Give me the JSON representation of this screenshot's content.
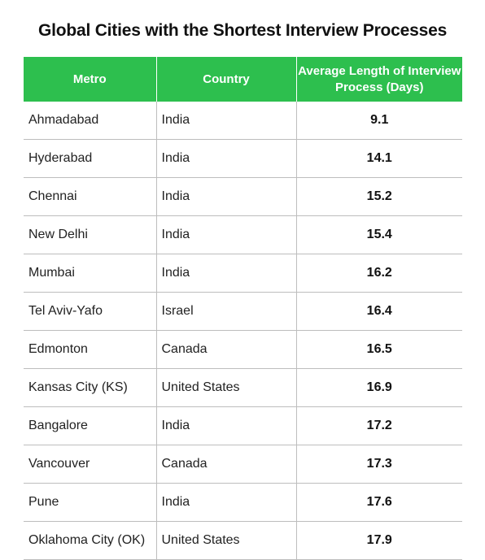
{
  "chart_data": {
    "type": "table",
    "title": "Global Cities with the Shortest Interview Processes",
    "header_color": "#2dbf4e",
    "columns": [
      "Metro",
      "Country",
      "Average Length of Interview Process (Days)"
    ],
    "rows": [
      {
        "metro": "Ahmadabad",
        "country": "India",
        "days": "9.1"
      },
      {
        "metro": "Hyderabad",
        "country": "India",
        "days": "14.1"
      },
      {
        "metro": "Chennai",
        "country": "India",
        "days": "15.2"
      },
      {
        "metro": "New Delhi",
        "country": "India",
        "days": "15.4"
      },
      {
        "metro": "Mumbai",
        "country": "India",
        "days": "16.2"
      },
      {
        "metro": "Tel Aviv-Yafo",
        "country": "Israel",
        "days": "16.4"
      },
      {
        "metro": "Edmonton",
        "country": "Canada",
        "days": "16.5"
      },
      {
        "metro": "Kansas City (KS)",
        "country": "United States",
        "days": "16.9"
      },
      {
        "metro": "Bangalore",
        "country": "India",
        "days": "17.2"
      },
      {
        "metro": "Vancouver",
        "country": "Canada",
        "days": "17.3"
      },
      {
        "metro": "Pune",
        "country": "India",
        "days": "17.6"
      },
      {
        "metro": "Oklahoma City (OK)",
        "country": "United States",
        "days": "17.9"
      }
    ]
  }
}
